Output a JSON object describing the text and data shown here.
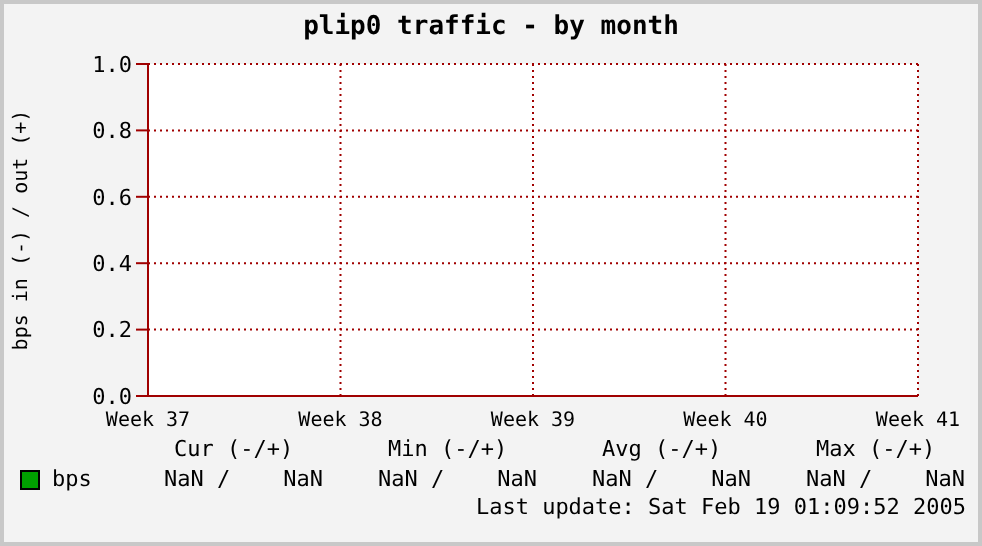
{
  "chart_data": {
    "type": "line",
    "title": "plip0 traffic - by month",
    "ylabel": "bps in (-) / out (+)",
    "categories": [
      "Week 37",
      "Week 38",
      "Week 39",
      "Week 40",
      "Week 41"
    ],
    "series": [
      {
        "name": "bps",
        "color": "#00a000",
        "values": [
          null,
          null,
          null,
          null,
          null
        ]
      }
    ],
    "ylim": [
      0,
      1
    ],
    "yticks": [
      {
        "value": 0,
        "label": "0.0"
      },
      {
        "value": 0.2,
        "label": "0.2"
      },
      {
        "value": 0.4,
        "label": "0.4"
      },
      {
        "value": 0.6,
        "label": "0.6"
      },
      {
        "value": 0.8,
        "label": "0.8"
      },
      {
        "value": 1,
        "label": "1.0"
      }
    ],
    "grid": true,
    "legend": "bottom left",
    "annotations": [
      "Cur (-/+)",
      "Min (-/+)",
      "Avg (-/+)",
      "Max (-/+)",
      "NaN /    NaN",
      "NaN /    NaN",
      "NaN /    NaN",
      "NaN /    NaN",
      "Last update: Sat Feb 19 01:09:52 2005"
    ]
  }
}
